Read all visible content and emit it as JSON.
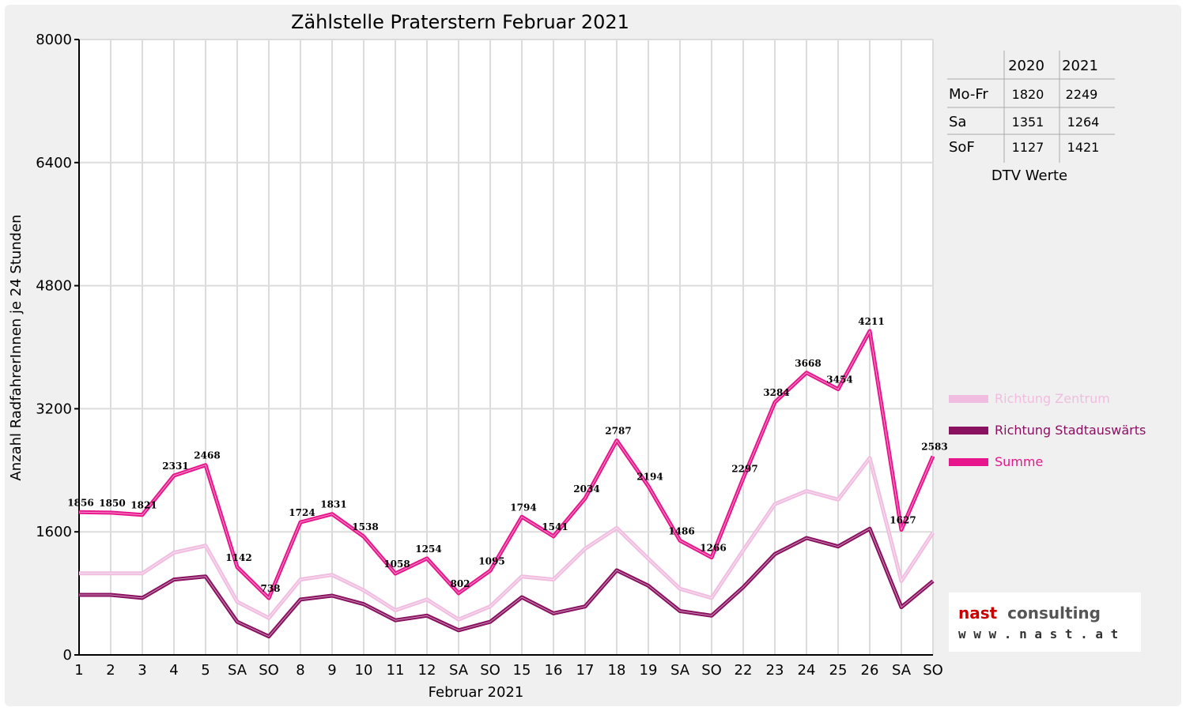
{
  "chart_data": {
    "type": "line",
    "title": "Zählstelle Praterstern Februar 2021",
    "xlabel": "Februar 2021",
    "ylabel": "Anzahl RadfahrerInnen je 24 Stunden",
    "ylim": [
      0,
      8000
    ],
    "yticks": [
      "0",
      "1600",
      "3200",
      "4800",
      "6400",
      "8000"
    ],
    "grid": true,
    "legend_position": "right",
    "categories": [
      "1",
      "2",
      "3",
      "4",
      "5",
      "SA",
      "SO",
      "8",
      "9",
      "10",
      "11",
      "12",
      "SA",
      "SO",
      "15",
      "16",
      "17",
      "18",
      "19",
      "SA",
      "SO",
      "22",
      "23",
      "24",
      "25",
      "26",
      "SA",
      "SO"
    ],
    "category_colors": [
      "#000000",
      "#000000",
      "#000000",
      "#000000",
      "#000000",
      "#000000",
      "#ff0000",
      "#000000",
      "#000000",
      "#000000",
      "#000000",
      "#000000",
      "#000000",
      "#ff0000",
      "#000000",
      "#000000",
      "#000000",
      "#000000",
      "#000000",
      "#000000",
      "#ff0000",
      "#000000",
      "#000000",
      "#000000",
      "#000000",
      "#000000",
      "#000000",
      "#ff0000"
    ],
    "series": [
      {
        "name": "Richtung Zentrum",
        "color": "#f0bde0",
        "values": [
          1060,
          1060,
          1060,
          1330,
          1420,
          690,
          480,
          980,
          1040,
          840,
          580,
          720,
          460,
          630,
          1020,
          980,
          1380,
          1650,
          1250,
          860,
          740,
          1360,
          1960,
          2130,
          2020,
          2560,
          960,
          1590
        ]
      },
      {
        "name": "Richtung Stadtauswärts",
        "color": "#8a1060",
        "values": [
          780,
          780,
          740,
          980,
          1020,
          430,
          240,
          720,
          770,
          660,
          450,
          510,
          320,
          430,
          750,
          540,
          630,
          1100,
          900,
          570,
          510,
          880,
          1310,
          1520,
          1410,
          1640,
          620,
          960
        ]
      },
      {
        "name": "Summe",
        "color": "#e8168c",
        "values": [
          1856,
          1850,
          1821,
          2331,
          2468,
          1142,
          738,
          1724,
          1831,
          1538,
          1058,
          1254,
          802,
          1095,
          1794,
          1541,
          2034,
          2787,
          2194,
          1486,
          1266,
          2297,
          3284,
          3668,
          3454,
          4211,
          1627,
          2583
        ],
        "labels": [
          "1856",
          "1850",
          "1821",
          "2331",
          "2468",
          "1142",
          "738",
          "1724",
          "1831",
          "1538",
          "1058",
          "1254",
          "802",
          "1095",
          "1794",
          "1541",
          "2034",
          "2787",
          "2194",
          "1486",
          "1266",
          "2297",
          "3284",
          "3668",
          "3454",
          "4211",
          "1627",
          "2583"
        ]
      }
    ]
  },
  "dtv_table": {
    "caption": "DTV Werte",
    "headers": [
      "",
      "2020",
      "2021"
    ],
    "rows": [
      {
        "label": "Mo-Fr",
        "v2020": "1820",
        "v2021": "2249"
      },
      {
        "label": "Sa",
        "v2020": "1351",
        "v2021": "1264"
      },
      {
        "label": "SoF",
        "v2020": "1127",
        "v2021": "1421"
      }
    ]
  },
  "logo": {
    "line1_a": "nast",
    "line1_b": "consulting",
    "line2": "w w w . n a s t . a t",
    "color_a": "#cc0000",
    "color_b": "#555555"
  }
}
